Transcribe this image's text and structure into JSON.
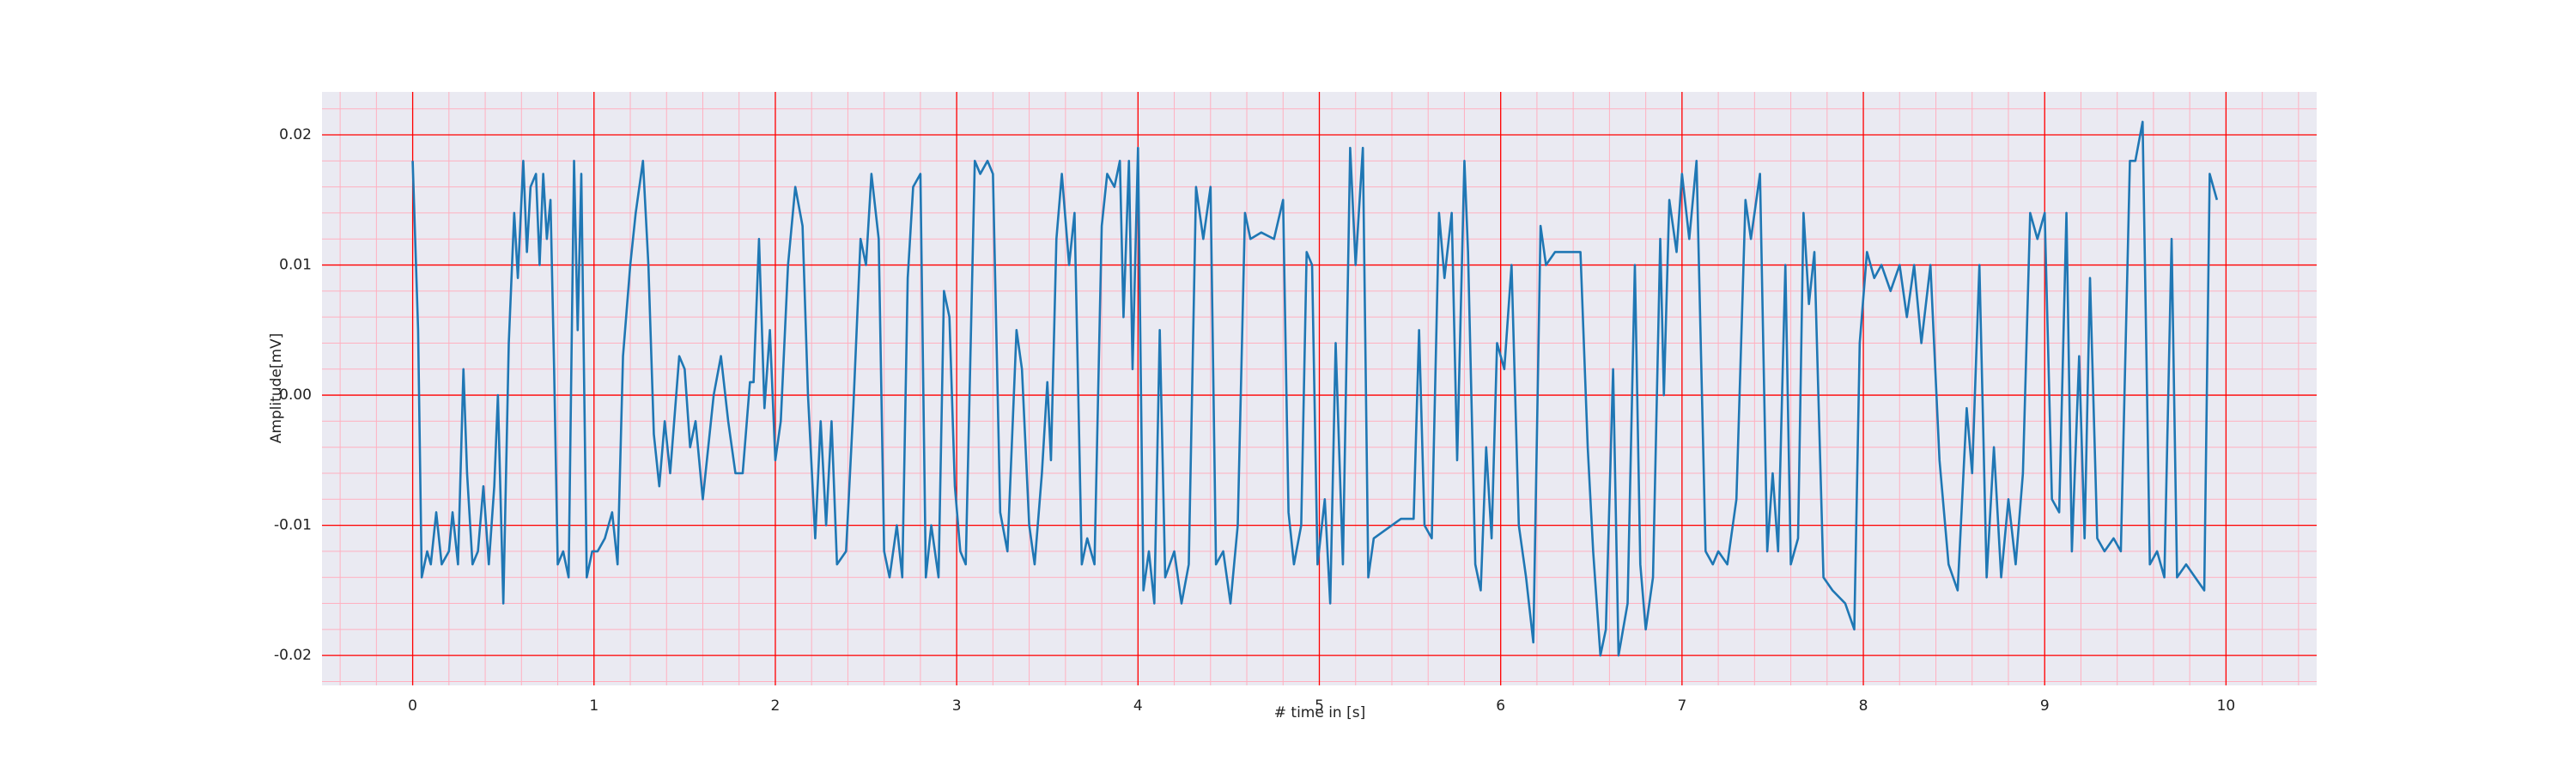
{
  "chart_data": {
    "type": "line",
    "xlabel": "# time in [s]",
    "ylabel": "Amplitude[mV]",
    "xlim": [
      -0.5,
      10.5
    ],
    "ylim": [
      -0.0223,
      0.0233
    ],
    "xticks": [
      0,
      1,
      2,
      3,
      4,
      5,
      6,
      7,
      8,
      9,
      10
    ],
    "yticks": [
      -0.02,
      -0.01,
      {
        "value": 0,
        "label": "0.00"
      },
      0.01,
      0.02
    ],
    "minor_xticks": [
      -0.4,
      -0.2,
      0,
      0.2,
      0.4,
      0.6,
      0.8,
      1,
      1.2,
      1.4,
      1.6,
      1.8,
      2,
      2.2,
      2.4,
      2.6,
      2.8,
      3,
      3.2,
      3.4,
      3.6,
      3.8,
      4,
      4.2,
      4.4,
      4.6,
      4.8,
      5,
      5.2,
      5.4,
      5.6,
      5.8,
      6,
      6.2,
      6.4,
      6.6,
      6.8,
      7,
      7.2,
      7.4,
      7.6,
      7.8,
      8,
      8.2,
      8.4,
      8.6,
      8.8,
      9,
      9.2,
      9.4,
      9.6,
      9.8,
      10,
      10.2,
      10.4
    ],
    "minor_yticks": [
      -0.022,
      -0.02,
      -0.018,
      -0.016,
      -0.014,
      -0.012,
      -0.01,
      -0.008,
      -0.006,
      -0.004,
      -0.002,
      0,
      0.002,
      0.004,
      0.006,
      0.008,
      0.01,
      0.012,
      0.014,
      0.016,
      0.018,
      0.02,
      0.022
    ],
    "grid": true,
    "grid_color": "#ff0000",
    "minor_grid_color": "#ffb0c0",
    "background": "#eaeaf2",
    "series": [
      {
        "color": "#1f77b4",
        "x": [
          0,
          0.03,
          0.05,
          0.08,
          0.1,
          0.13,
          0.16,
          0.2,
          0.22,
          0.25,
          0.28,
          0.3,
          0.33,
          0.36,
          0.39,
          0.42,
          0.45,
          0.47,
          0.5,
          0.53,
          0.56,
          0.58,
          0.61,
          0.63,
          0.65,
          0.68,
          0.7,
          0.72,
          0.74,
          0.76,
          0.78,
          0.8,
          0.83,
          0.86,
          0.89,
          0.91,
          0.93,
          0.96,
          0.99,
          1.02,
          1.06,
          1.1,
          1.13,
          1.16,
          1.2,
          1.23,
          1.27,
          1.3,
          1.33,
          1.36,
          1.39,
          1.42,
          1.47,
          1.5,
          1.53,
          1.56,
          1.6,
          1.63,
          1.66,
          1.7,
          1.74,
          1.78,
          1.82,
          1.86,
          1.88,
          1.91,
          1.94,
          1.97,
          2.0,
          2.03,
          2.07,
          2.11,
          2.15,
          2.18,
          2.22,
          2.25,
          2.28,
          2.31,
          2.34,
          2.39,
          2.43,
          2.47,
          2.5,
          2.53,
          2.57,
          2.6,
          2.63,
          2.67,
          2.7,
          2.73,
          2.76,
          2.8,
          2.83,
          2.86,
          2.9,
          2.93,
          2.96,
          2.99,
          3.02,
          3.05,
          3.1,
          3.13,
          3.17,
          3.2,
          3.24,
          3.28,
          3.33,
          3.36,
          3.4,
          3.43,
          3.47,
          3.5,
          3.52,
          3.55,
          3.58,
          3.62,
          3.65,
          3.69,
          3.72,
          3.76,
          3.8,
          3.83,
          3.87,
          3.9,
          3.92,
          3.95,
          3.97,
          4.0,
          4.03,
          4.06,
          4.09,
          4.12,
          4.15,
          4.2,
          4.24,
          4.28,
          4.32,
          4.36,
          4.4,
          4.43,
          4.47,
          4.51,
          4.55,
          4.59,
          4.62,
          4.68,
          4.75,
          4.8,
          4.83,
          4.86,
          4.9,
          4.93,
          4.96,
          4.99,
          5.03,
          5.06,
          5.09,
          5.13,
          5.17,
          5.2,
          5.24,
          5.27,
          5.3,
          5.35,
          5.45,
          5.52,
          5.55,
          5.58,
          5.62,
          5.66,
          5.69,
          5.73,
          5.76,
          5.8,
          5.82,
          5.86,
          5.89,
          5.92,
          5.95,
          5.98,
          6.02,
          6.06,
          6.1,
          6.14,
          6.18,
          6.22,
          6.25,
          6.3,
          6.35,
          6.44,
          6.48,
          6.51,
          6.55,
          6.58,
          6.62,
          6.65,
          6.7,
          6.74,
          6.77,
          6.8,
          6.84,
          6.88,
          6.9,
          6.93,
          6.97,
          7.0,
          7.04,
          7.08,
          7.13,
          7.17,
          7.2,
          7.25,
          7.3,
          7.35,
          7.38,
          7.43,
          7.47,
          7.5,
          7.53,
          7.57,
          7.6,
          7.64,
          7.67,
          7.7,
          7.73,
          7.78,
          7.83,
          7.9,
          7.95,
          7.98,
          8.02,
          8.06,
          8.1,
          8.15,
          8.2,
          8.24,
          8.28,
          8.32,
          8.37,
          8.42,
          8.47,
          8.52,
          8.57,
          8.6,
          8.64,
          8.68,
          8.72,
          8.76,
          8.8,
          8.84,
          8.88,
          8.92,
          8.96,
          9.0,
          9.04,
          9.08,
          9.12,
          9.15,
          9.19,
          9.22,
          9.25,
          9.29,
          9.33,
          9.38,
          9.42,
          9.47,
          9.5,
          9.54,
          9.58,
          9.62,
          9.66,
          9.7,
          9.73,
          9.78,
          9.83,
          9.88,
          9.91,
          9.95
        ],
        "values": [
          0.018,
          0.005,
          -0.014,
          -0.012,
          -0.013,
          -0.009,
          -0.013,
          -0.012,
          -0.009,
          -0.013,
          0.002,
          -0.006,
          -0.013,
          -0.012,
          -0.007,
          -0.013,
          -0.007,
          0.0,
          -0.016,
          0.004,
          0.014,
          0.009,
          0.018,
          0.011,
          0.016,
          0.017,
          0.01,
          0.017,
          0.012,
          0.015,
          0.002,
          -0.013,
          -0.012,
          -0.014,
          0.018,
          0.005,
          0.017,
          -0.014,
          -0.012,
          -0.012,
          -0.011,
          -0.009,
          -0.013,
          0.003,
          0.01,
          0.014,
          0.018,
          0.01,
          -0.003,
          -0.007,
          -0.002,
          -0.006,
          0.003,
          0.002,
          -0.004,
          -0.002,
          -0.008,
          -0.004,
          0.0,
          0.003,
          -0.002,
          -0.006,
          -0.006,
          0.001,
          0.001,
          0.012,
          -0.001,
          0.005,
          -0.005,
          -0.002,
          0.01,
          0.016,
          0.013,
          0.0,
          -0.011,
          -0.002,
          -0.01,
          -0.002,
          -0.013,
          -0.012,
          -0.001,
          0.012,
          0.01,
          0.017,
          0.012,
          -0.012,
          -0.014,
          -0.01,
          -0.014,
          0.009,
          0.016,
          0.017,
          -0.014,
          -0.01,
          -0.014,
          0.008,
          0.006,
          -0.007,
          -0.012,
          -0.013,
          0.018,
          0.017,
          0.018,
          0.017,
          -0.009,
          -0.012,
          0.005,
          0.002,
          -0.01,
          -0.013,
          -0.006,
          0.001,
          -0.005,
          0.012,
          0.017,
          0.01,
          0.014,
          -0.013,
          -0.011,
          -0.013,
          0.013,
          0.017,
          0.016,
          0.018,
          0.006,
          0.018,
          0.002,
          0.019,
          -0.015,
          -0.012,
          -0.016,
          0.005,
          -0.014,
          -0.012,
          -0.016,
          -0.013,
          0.016,
          0.012,
          0.016,
          -0.013,
          -0.012,
          -0.016,
          -0.01,
          0.014,
          0.012,
          0.0125,
          0.012,
          0.015,
          -0.009,
          -0.013,
          -0.01,
          0.011,
          0.01,
          -0.013,
          -0.008,
          -0.016,
          0.004,
          -0.013,
          0.019,
          0.01,
          0.019,
          -0.014,
          -0.011,
          -0.0105,
          -0.0095,
          -0.0095,
          0.005,
          -0.01,
          -0.011,
          0.014,
          0.009,
          0.014,
          -0.005,
          0.018,
          0.011,
          -0.013,
          -0.015,
          -0.004,
          -0.011,
          0.004,
          0.002,
          0.01,
          -0.01,
          -0.014,
          -0.019,
          0.013,
          0.01,
          0.011,
          0.011,
          0.011,
          -0.004,
          -0.012,
          -0.02,
          -0.018,
          0.002,
          -0.02,
          -0.016,
          0.01,
          -0.013,
          -0.018,
          -0.014,
          0.012,
          0.0,
          0.015,
          0.011,
          0.017,
          0.012,
          0.018,
          -0.012,
          -0.013,
          -0.012,
          -0.013,
          -0.008,
          0.015,
          0.012,
          0.017,
          -0.012,
          -0.006,
          -0.012,
          0.01,
          -0.013,
          -0.011,
          0.014,
          0.007,
          0.011,
          -0.014,
          -0.015,
          -0.016,
          -0.018,
          0.004,
          0.011,
          0.009,
          0.01,
          0.008,
          0.01,
          0.006,
          0.01,
          0.004,
          0.01,
          -0.005,
          -0.013,
          -0.015,
          -0.001,
          -0.006,
          0.01,
          -0.014,
          -0.004,
          -0.014,
          -0.008,
          -0.013,
          -0.006,
          0.014,
          0.012,
          0.014,
          -0.008,
          -0.009,
          0.014,
          -0.012,
          0.003,
          -0.011,
          0.009,
          -0.011,
          -0.012,
          -0.011,
          -0.012,
          0.018,
          0.018,
          0.021,
          -0.013,
          -0.012,
          -0.014,
          0.012,
          -0.014,
          -0.013,
          -0.014,
          -0.015,
          0.017,
          0.015
        ]
      }
    ]
  }
}
